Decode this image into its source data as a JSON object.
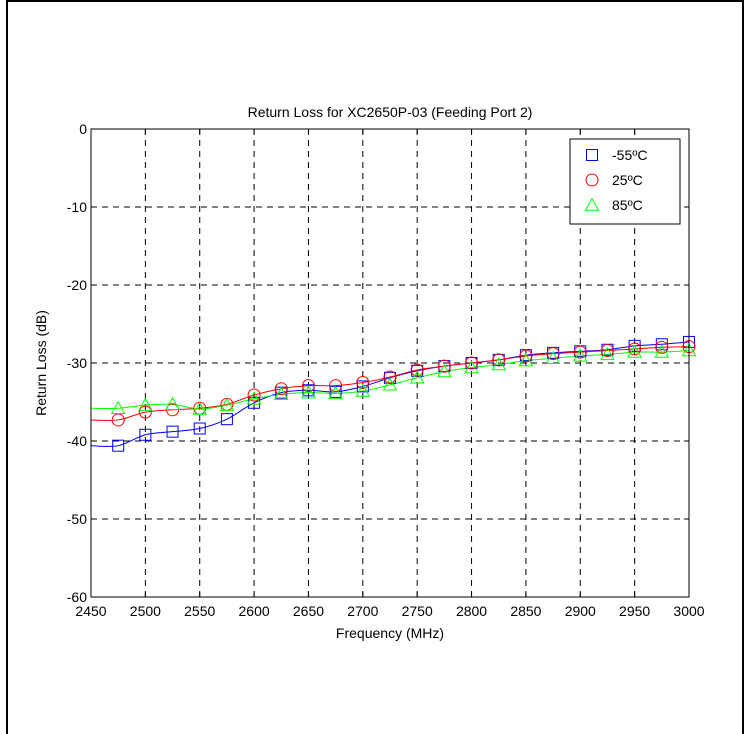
{
  "chart_data": {
    "type": "line",
    "title": "Return Loss for XC2650P-03 (Feeding Port 2)",
    "xlabel": "Frequency (MHz)",
    "ylabel": "Return Loss (dB)",
    "xlim": [
      2450,
      3000
    ],
    "ylim": [
      -60,
      0
    ],
    "xticks": [
      2450,
      2500,
      2550,
      2600,
      2650,
      2700,
      2750,
      2800,
      2850,
      2900,
      2950,
      3000
    ],
    "yticks": [
      0,
      -10,
      -20,
      -30,
      -40,
      -50,
      -60
    ],
    "grid": true,
    "legend_position": "top-right",
    "x": [
      2475,
      2500,
      2525,
      2550,
      2575,
      2600,
      2625,
      2650,
      2675,
      2700,
      2725,
      2750,
      2775,
      2800,
      2825,
      2850,
      2875,
      2900,
      2925,
      2950,
      2975,
      3000
    ],
    "series": [
      {
        "name": "-55ºC",
        "color": "#0000ff",
        "marker": "square",
        "values": [
          -40.6,
          -39.2,
          -38.8,
          -38.4,
          -37.2,
          -35.1,
          -33.8,
          -33.5,
          -33.7,
          -33.0,
          -31.9,
          -31.0,
          -30.4,
          -30.0,
          -29.6,
          -29.0,
          -28.7,
          -28.5,
          -28.3,
          -27.8,
          -27.6,
          -27.3
        ]
      },
      {
        "name": "25ºC",
        "color": "#ff0000",
        "marker": "circle",
        "values": [
          -37.3,
          -36.3,
          -36.0,
          -35.8,
          -35.3,
          -34.1,
          -33.3,
          -32.9,
          -32.9,
          -32.5,
          -31.8,
          -30.9,
          -30.4,
          -30.0,
          -29.6,
          -29.1,
          -28.8,
          -28.6,
          -28.4,
          -28.2,
          -28.0,
          -27.9
        ]
      },
      {
        "name": "85ºC",
        "color": "#00ff00",
        "marker": "triangle",
        "values": [
          -35.8,
          -35.4,
          -35.3,
          -35.9,
          -35.4,
          -34.6,
          -34.0,
          -33.8,
          -33.9,
          -33.6,
          -32.8,
          -31.9,
          -31.1,
          -30.6,
          -30.2,
          -29.7,
          -29.4,
          -29.1,
          -28.9,
          -28.6,
          -28.6,
          -28.4
        ]
      }
    ]
  }
}
